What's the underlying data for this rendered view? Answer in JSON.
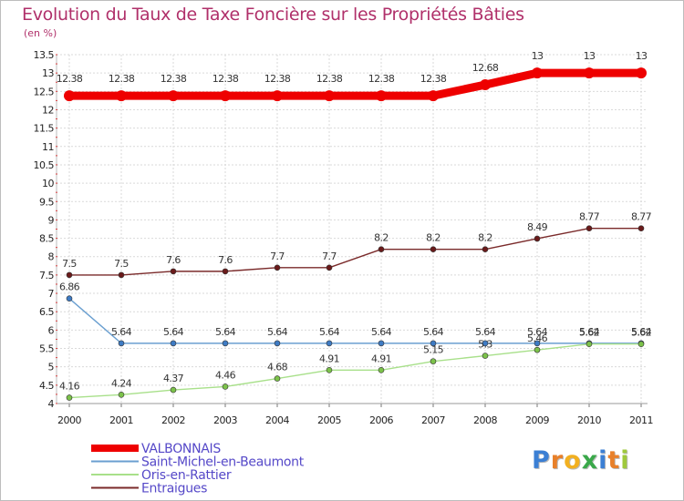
{
  "title": "Evolution du Taux de Taxe Foncière sur les Propriétés Bâties",
  "unit": "(en %)",
  "logo": {
    "letters": [
      "P",
      "r",
      "o",
      "x",
      "i",
      "t",
      "i"
    ],
    "colors": [
      "#3b7fd4",
      "#e8802a",
      "#f2b020",
      "#3aa84a",
      "#3b7fd4",
      "#e8802a",
      "#9fc93c"
    ]
  },
  "chart_data": {
    "type": "line",
    "title": "Evolution du Taux de Taxe Foncière sur les Propriétés Bâties",
    "ylabel": "(en %)",
    "xlabel": "",
    "ylim": [
      4,
      13.5
    ],
    "yticks": [
      4,
      4.5,
      5,
      5.5,
      6,
      6.5,
      7,
      7.5,
      8,
      8.5,
      9,
      9.5,
      10,
      10.5,
      11,
      11.5,
      12,
      12.5,
      13,
      13.5
    ],
    "categories": [
      "2000",
      "2001",
      "2002",
      "2003",
      "2004",
      "2005",
      "2006",
      "2007",
      "2008",
      "2009",
      "2010",
      "2011"
    ],
    "legend_position": "bottom-left",
    "series": [
      {
        "name": "VALBONNAIS",
        "color": "#ee0000",
        "point_color": "#ee0000",
        "thick": true,
        "values": [
          12.38,
          12.38,
          12.38,
          12.38,
          12.38,
          12.38,
          12.38,
          12.38,
          12.68,
          13,
          13,
          13
        ],
        "labels": [
          "12.38",
          "12.38",
          "12.38",
          "12.38",
          "12.38",
          "12.38",
          "12.38",
          "12.38",
          "12.68",
          "13",
          "13",
          "13"
        ]
      },
      {
        "name": "Saint-Michel-en-Beaumont",
        "color": "#6a9fd0",
        "point_color": "#3e7bc4",
        "thick": false,
        "values": [
          6.86,
          5.64,
          5.64,
          5.64,
          5.64,
          5.64,
          5.64,
          5.64,
          5.64,
          5.64,
          5.64,
          5.64
        ],
        "labels": [
          "6.86",
          "5.64",
          "5.64",
          "5.64",
          "5.64",
          "5.64",
          "5.64",
          "5.64",
          "5.64",
          "5.64",
          "5.64",
          "5.64"
        ]
      },
      {
        "name": "Oris-en-Rattier",
        "color": "#a8e08a",
        "point_color": "#7cc24a",
        "thick": false,
        "values": [
          4.16,
          4.24,
          4.37,
          4.46,
          4.68,
          4.91,
          4.91,
          5.15,
          5.3,
          5.46,
          5.62,
          5.62
        ],
        "labels": [
          "4.16",
          "4.24",
          "4.37",
          "4.46",
          "4.68",
          "4.91",
          "4.91",
          "5.15",
          "5.3",
          "5.46",
          "5.62",
          "5.62"
        ]
      },
      {
        "name": "Entraigues",
        "color": "#7a2a2a",
        "point_color": "#6a1a1a",
        "thick": false,
        "values": [
          7.5,
          7.5,
          7.6,
          7.6,
          7.7,
          7.7,
          8.2,
          8.2,
          8.2,
          8.49,
          8.77,
          8.77
        ],
        "labels": [
          "7.5",
          "7.5",
          "7.6",
          "7.6",
          "7.7",
          "7.7",
          "8.2",
          "8.2",
          "8.2",
          "8.49",
          "8.77",
          "8.77"
        ]
      }
    ]
  }
}
